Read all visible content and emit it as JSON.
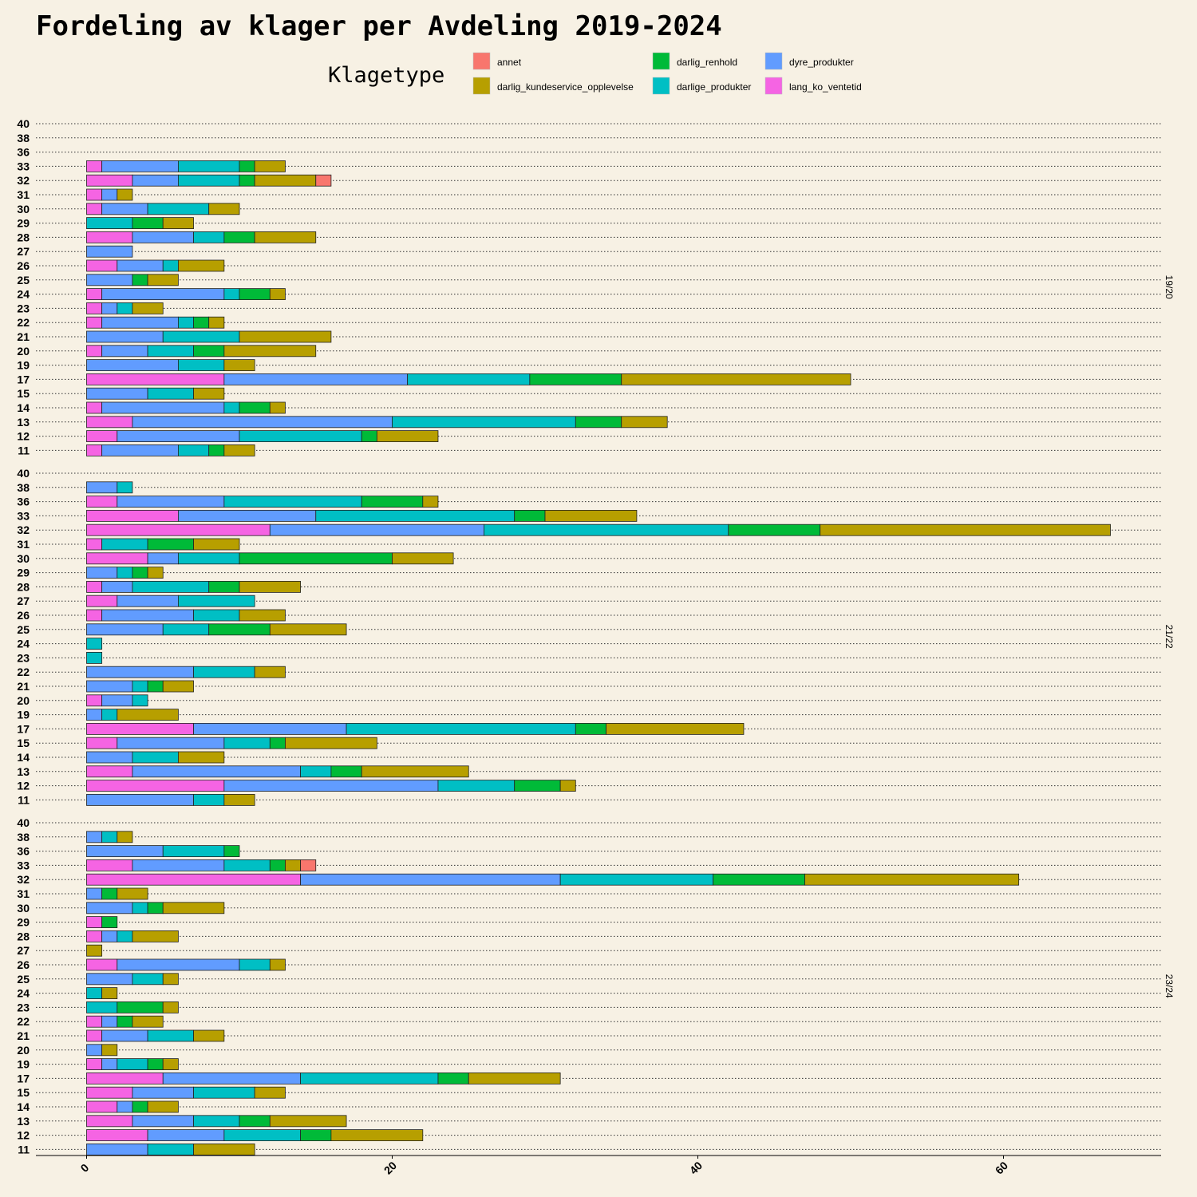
{
  "chart_data": {
    "type": "bar",
    "orientation": "horizontal",
    "stacked": true,
    "title": "Fordeling av klager per Avdeling 2019-2024",
    "legend": {
      "title": "Klagetype",
      "position": "top",
      "entries": [
        "annet",
        "darlig_kundeservice_opplevelse",
        "darlig_renhold",
        "darlige_produkter",
        "dyre_produkter",
        "lang_ko_ventetid"
      ]
    },
    "colors": {
      "annet": "#f8766d",
      "darlig_kundeservice_opplevelse": "#b79f00",
      "darlig_renhold": "#00ba38",
      "darlige_produkter": "#00bfc4",
      "dyre_produkter": "#619cff",
      "lang_ko_ventetid": "#f564e3"
    },
    "stack_order": [
      "lang_ko_ventetid",
      "dyre_produkter",
      "darlige_produkter",
      "darlig_renhold",
      "darlig_kundeservice_opplevelse",
      "annet"
    ],
    "xlim": [
      -3.4,
      70.3
    ],
    "xticks": [
      0,
      20,
      40,
      60
    ],
    "grid": "horizontal dotted",
    "panels": [
      {
        "label": "19/20",
        "categories": [
          "11",
          "12",
          "13",
          "14",
          "15",
          "17",
          "19",
          "20",
          "21",
          "22",
          "23",
          "24",
          "25",
          "26",
          "27",
          "28",
          "29",
          "30",
          "31",
          "32",
          "33",
          "36",
          "38",
          "40"
        ],
        "series": [
          {
            "name": "lang_ko_ventetid",
            "values": [
              1,
              2,
              3,
              1,
              0,
              9,
              0,
              1,
              0,
              1,
              1,
              1,
              0,
              2,
              0,
              3,
              0,
              1,
              1,
              3,
              1,
              0,
              0,
              0
            ]
          },
          {
            "name": "dyre_produkter",
            "values": [
              5,
              8,
              17,
              8,
              4,
              12,
              6,
              3,
              5,
              5,
              1,
              8,
              3,
              3,
              3,
              4,
              0,
              3,
              1,
              3,
              5,
              0,
              0,
              0
            ]
          },
          {
            "name": "darlige_produkter",
            "values": [
              2,
              8,
              12,
              1,
              3,
              8,
              3,
              3,
              5,
              1,
              1,
              1,
              0,
              1,
              0,
              2,
              3,
              4,
              0,
              4,
              4,
              0,
              0,
              0
            ]
          },
          {
            "name": "darlig_renhold",
            "values": [
              1,
              1,
              3,
              2,
              0,
              6,
              0,
              2,
              0,
              1,
              0,
              2,
              1,
              0,
              0,
              2,
              2,
              0,
              0,
              1,
              1,
              0,
              0,
              0
            ]
          },
          {
            "name": "darlig_kundeservice_opplevelse",
            "values": [
              2,
              4,
              3,
              1,
              2,
              15,
              2,
              6,
              6,
              1,
              2,
              1,
              2,
              3,
              0,
              4,
              2,
              2,
              1,
              4,
              2,
              0,
              0,
              0
            ]
          },
          {
            "name": "annet",
            "values": [
              0,
              0,
              0,
              0,
              0,
              0,
              0,
              0,
              0,
              0,
              0,
              0,
              0,
              0,
              0,
              0,
              0,
              0,
              0,
              1,
              0,
              0,
              0,
              0
            ]
          }
        ]
      },
      {
        "label": "21/22",
        "categories": [
          "11",
          "12",
          "13",
          "14",
          "15",
          "17",
          "19",
          "20",
          "21",
          "22",
          "23",
          "24",
          "25",
          "26",
          "27",
          "28",
          "29",
          "30",
          "31",
          "32",
          "33",
          "36",
          "38",
          "40"
        ],
        "series": [
          {
            "name": "lang_ko_ventetid",
            "values": [
              0,
              9,
              3,
              0,
              2,
              7,
              0,
              1,
              0,
              0,
              0,
              0,
              0,
              1,
              2,
              1,
              0,
              4,
              1,
              12,
              6,
              2,
              0,
              0
            ]
          },
          {
            "name": "dyre_produkter",
            "values": [
              7,
              14,
              11,
              3,
              7,
              10,
              1,
              2,
              3,
              7,
              0,
              0,
              5,
              6,
              4,
              2,
              2,
              2,
              0,
              14,
              9,
              7,
              2,
              0
            ]
          },
          {
            "name": "darlige_produkter",
            "values": [
              2,
              5,
              2,
              3,
              3,
              15,
              1,
              1,
              1,
              4,
              1,
              1,
              3,
              3,
              5,
              5,
              1,
              4,
              3,
              16,
              13,
              9,
              1,
              0
            ]
          },
          {
            "name": "darlig_renhold",
            "values": [
              0,
              3,
              2,
              0,
              1,
              2,
              0,
              0,
              1,
              0,
              0,
              0,
              4,
              0,
              0,
              2,
              1,
              10,
              3,
              6,
              2,
              4,
              0,
              0
            ]
          },
          {
            "name": "darlig_kundeservice_opplevelse",
            "values": [
              2,
              1,
              7,
              3,
              6,
              9,
              4,
              0,
              2,
              2,
              0,
              0,
              5,
              3,
              0,
              4,
              1,
              4,
              3,
              19,
              6,
              1,
              0,
              0
            ]
          },
          {
            "name": "annet",
            "values": [
              0,
              0,
              0,
              0,
              0,
              0,
              0,
              0,
              0,
              0,
              0,
              0,
              0,
              0,
              0,
              0,
              0,
              0,
              0,
              0,
              0,
              0,
              0,
              0
            ]
          }
        ]
      },
      {
        "label": "23/24",
        "categories": [
          "11",
          "12",
          "13",
          "14",
          "15",
          "17",
          "19",
          "20",
          "21",
          "22",
          "23",
          "24",
          "25",
          "26",
          "27",
          "28",
          "29",
          "30",
          "31",
          "32",
          "33",
          "36",
          "38",
          "40"
        ],
        "series": [
          {
            "name": "lang_ko_ventetid",
            "values": [
              0,
              4,
              3,
              2,
              3,
              5,
              1,
              0,
              1,
              1,
              0,
              0,
              0,
              2,
              0,
              1,
              1,
              0,
              0,
              14,
              3,
              0,
              0,
              0
            ]
          },
          {
            "name": "dyre_produkter",
            "values": [
              4,
              5,
              4,
              1,
              4,
              9,
              1,
              1,
              3,
              1,
              0,
              0,
              3,
              8,
              0,
              1,
              0,
              3,
              1,
              17,
              6,
              5,
              1,
              0
            ]
          },
          {
            "name": "darlige_produkter",
            "values": [
              3,
              5,
              3,
              0,
              4,
              9,
              2,
              0,
              3,
              0,
              2,
              1,
              2,
              2,
              0,
              1,
              0,
              1,
              0,
              10,
              3,
              4,
              1,
              0
            ]
          },
          {
            "name": "darlig_renhold",
            "values": [
              0,
              2,
              2,
              1,
              0,
              2,
              1,
              0,
              0,
              1,
              3,
              0,
              0,
              0,
              0,
              0,
              1,
              1,
              1,
              6,
              1,
              1,
              0,
              0
            ]
          },
          {
            "name": "darlig_kundeservice_opplevelse",
            "values": [
              4,
              6,
              5,
              2,
              2,
              6,
              1,
              1,
              2,
              2,
              1,
              1,
              1,
              1,
              1,
              3,
              0,
              4,
              2,
              14,
              1,
              0,
              1,
              0
            ]
          },
          {
            "name": "annet",
            "values": [
              0,
              0,
              0,
              0,
              0,
              0,
              0,
              0,
              0,
              0,
              0,
              0,
              0,
              0,
              0,
              0,
              0,
              0,
              0,
              0,
              1,
              0,
              0,
              0
            ]
          }
        ]
      }
    ]
  }
}
